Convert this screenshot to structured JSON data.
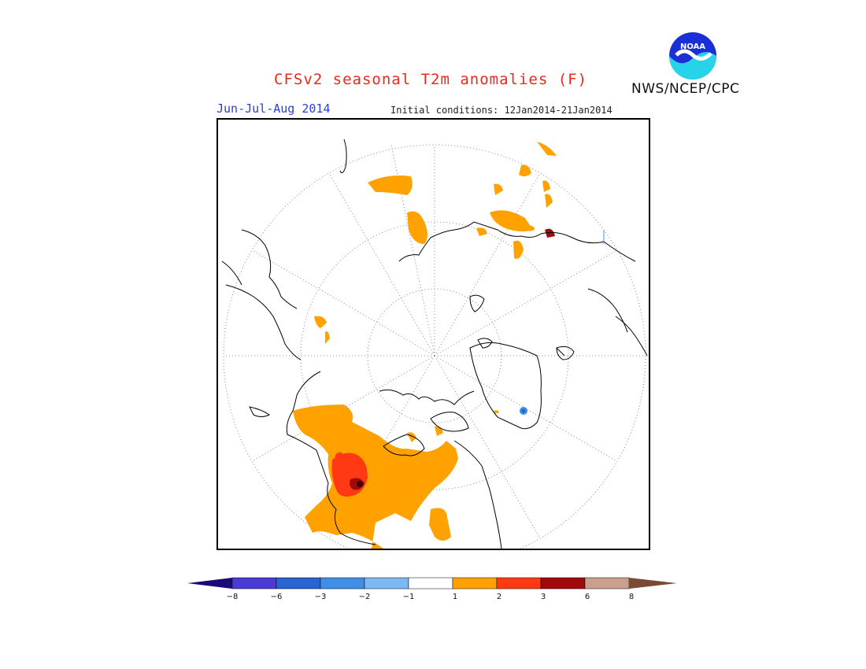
{
  "title": "CFSv2 seasonal T2m anomalies (F)",
  "agency": "NWS/NCEP/CPC",
  "logo_text": "NOAA",
  "period": "Jun-Jul-Aug 2014",
  "initial_conditions": "Initial conditions: 12Jan2014-21Jan2014",
  "colorbar": {
    "labels": [
      "−8",
      "−6",
      "−3",
      "−2",
      "−1",
      "1",
      "2",
      "3",
      "6",
      "8"
    ],
    "colors": [
      "#1b0a7a",
      "#4a3bd4",
      "#2766d0",
      "#3f8fe6",
      "#7cb8f2",
      "#ffffff",
      "#ffa200",
      "#ff3a12",
      "#a00a0a",
      "#c9a08d",
      "#7a4a33"
    ]
  },
  "map": {
    "projection": "north polar stereographic",
    "anomaly_regions": [
      {
        "name": "western-north-america",
        "color": "#ffa200"
      },
      {
        "name": "pacific-northwest-core",
        "color": "#ff3a12"
      },
      {
        "name": "pacific-northwest-max",
        "color": "#a00a0a"
      },
      {
        "name": "siberia-patches",
        "color": "#ffa200"
      },
      {
        "name": "greenland-cold-spot",
        "color": "#2766d0"
      }
    ]
  }
}
